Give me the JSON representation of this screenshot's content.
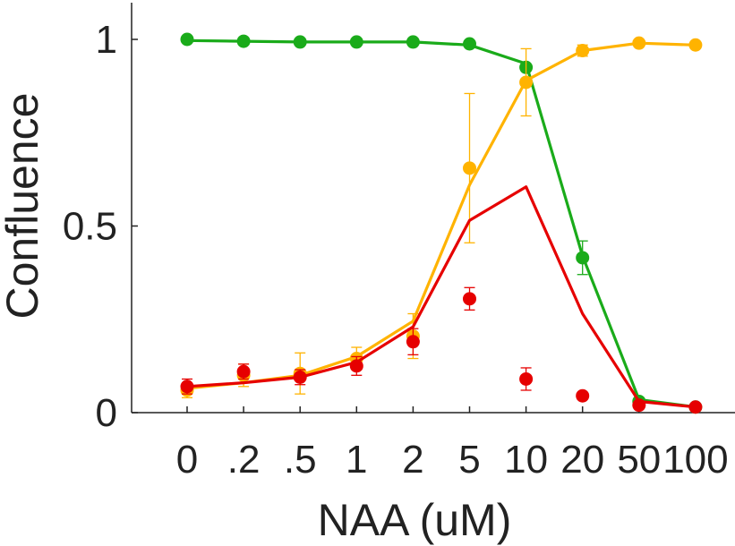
{
  "chart_data": {
    "type": "line",
    "xlabel": "NAA (uM)",
    "ylabel": "Confluence",
    "categories": [
      "0",
      ".2",
      ".5",
      "1",
      "2",
      "5",
      "10",
      "20",
      "50",
      "100"
    ],
    "ylim": [
      0,
      1.1
    ],
    "yticks": [
      {
        "value": 0,
        "label": "0"
      },
      {
        "value": 0.5,
        "label": "0.5"
      },
      {
        "value": 1,
        "label": "1"
      }
    ],
    "grid": false,
    "legend": "none",
    "series": [
      {
        "color": "#1aab1a",
        "values": [
          1.0,
          0.995,
          0.993,
          0.993,
          0.993,
          0.988,
          0.925,
          0.415,
          0.03,
          0.015
        ],
        "errors": [
          0,
          0,
          0,
          0,
          0,
          0,
          0,
          0.045,
          0,
          0
        ],
        "fit": [
          0.997,
          0.995,
          0.993,
          0.993,
          0.993,
          0.985,
          0.935,
          0.42,
          0.035,
          0.015
        ]
      },
      {
        "color": "#ffb300",
        "values": [
          0.06,
          0.1,
          0.105,
          0.145,
          0.205,
          0.655,
          0.885,
          0.97,
          0.99,
          0.985
        ],
        "errors": [
          0.02,
          0.03,
          0.055,
          0.03,
          0.06,
          0.2,
          0.09,
          0.015,
          0,
          0
        ],
        "fit": [
          0.065,
          0.08,
          0.1,
          0.15,
          0.245,
          0.61,
          0.89,
          0.97,
          0.99,
          0.985
        ]
      },
      {
        "color": "#e60000",
        "values": [
          0.07,
          0.11,
          0.095,
          0.125,
          0.19,
          0.305,
          0.09,
          0.045,
          0.02,
          0.015
        ],
        "errors": [
          0.02,
          0.02,
          0.02,
          0.025,
          0.035,
          0.03,
          0.03,
          0,
          0,
          0
        ],
        "fit": [
          0.07,
          0.08,
          0.095,
          0.135,
          0.23,
          0.515,
          0.605,
          0.265,
          0.03,
          0.015
        ]
      }
    ]
  }
}
